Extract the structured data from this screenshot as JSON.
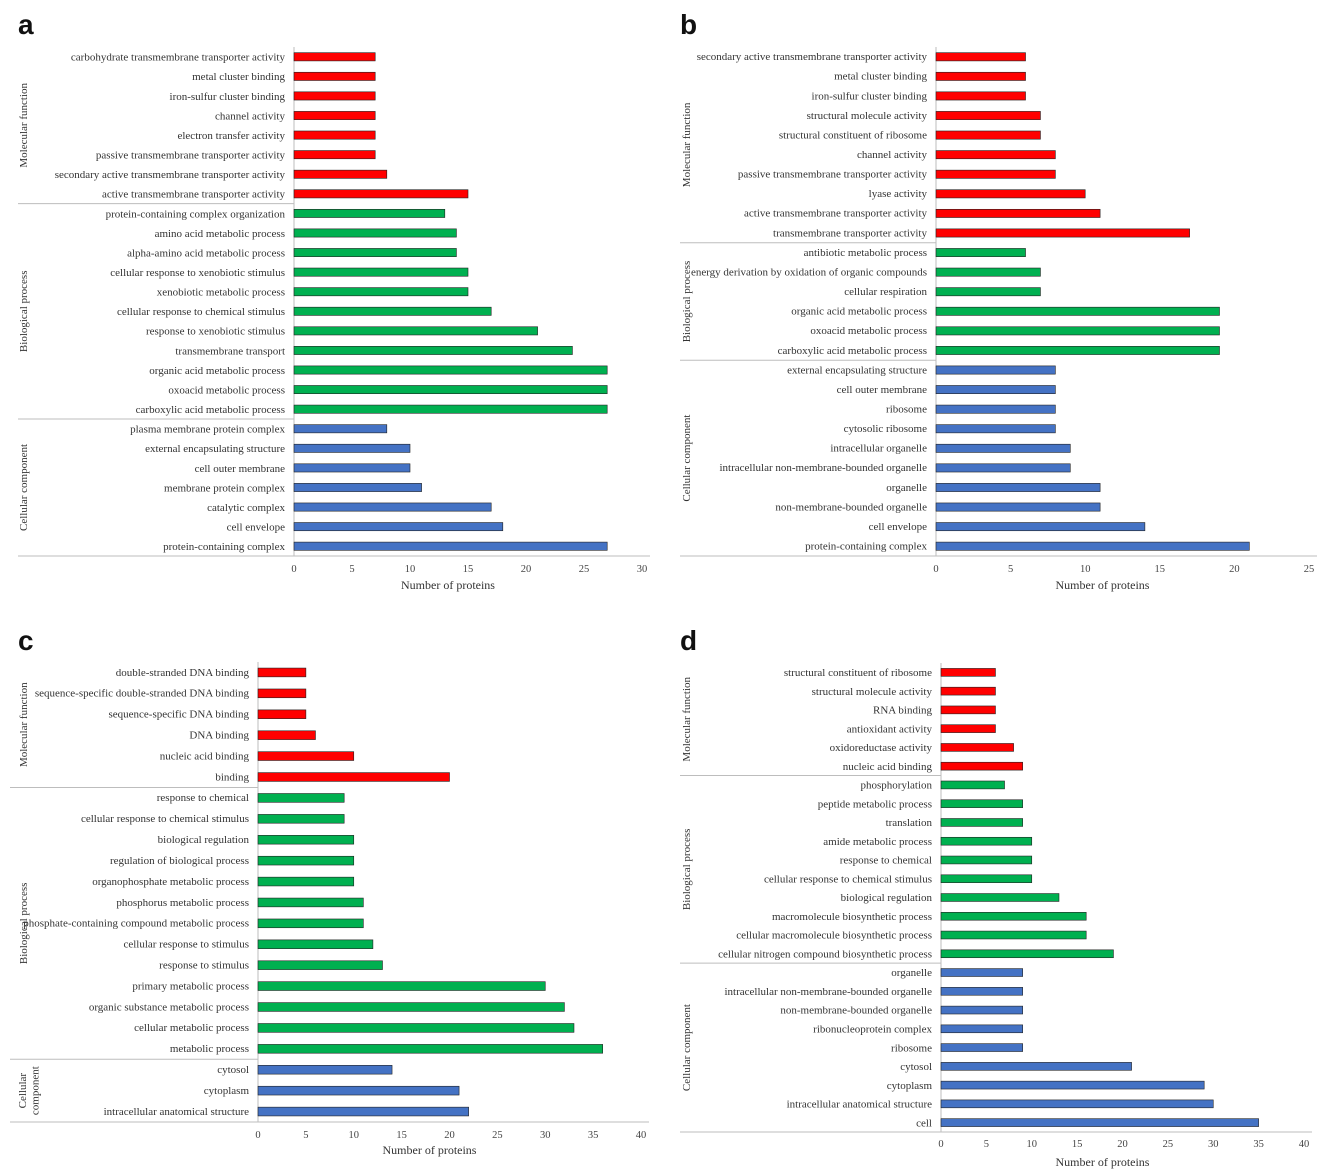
{
  "chart_data": [
    {
      "panel": "a",
      "type": "bar",
      "orientation": "horizontal",
      "xlabel": "Number of proteins",
      "xlim": [
        0,
        30
      ],
      "xticks": [
        0,
        5,
        10,
        15,
        20,
        25,
        30
      ],
      "groups": [
        {
          "name": "Molecular function",
          "color": "#ff0000",
          "items": [
            {
              "label": "carbohydrate transmembrane transporter activity",
              "value": 7
            },
            {
              "label": "metal cluster binding",
              "value": 7
            },
            {
              "label": "iron-sulfur cluster binding",
              "value": 7
            },
            {
              "label": "channel activity",
              "value": 7
            },
            {
              "label": "electron transfer activity",
              "value": 7
            },
            {
              "label": "passive transmembrane transporter activity",
              "value": 7
            },
            {
              "label": "secondary active transmembrane transporter activity",
              "value": 8
            },
            {
              "label": "active transmembrane transporter activity",
              "value": 15
            }
          ]
        },
        {
          "name": "Biological process",
          "color": "#00b050",
          "items": [
            {
              "label": "protein-containing complex organization",
              "value": 13
            },
            {
              "label": "amino acid metabolic process",
              "value": 14
            },
            {
              "label": "alpha-amino acid metabolic process",
              "value": 14
            },
            {
              "label": "cellular response to xenobiotic stimulus",
              "value": 15
            },
            {
              "label": "xenobiotic metabolic process",
              "value": 15
            },
            {
              "label": "cellular response to chemical stimulus",
              "value": 17
            },
            {
              "label": "response to xenobiotic stimulus",
              "value": 21
            },
            {
              "label": "transmembrane transport",
              "value": 24
            },
            {
              "label": "organic acid metabolic process",
              "value": 27
            },
            {
              "label": "oxoacid metabolic process",
              "value": 27
            },
            {
              "label": "carboxylic acid metabolic process",
              "value": 27
            }
          ]
        },
        {
          "name": "Cellular component",
          "color": "#4472c4",
          "items": [
            {
              "label": "plasma membrane protein complex",
              "value": 8
            },
            {
              "label": "external encapsulating structure",
              "value": 10
            },
            {
              "label": "cell outer membrane",
              "value": 10
            },
            {
              "label": "membrane protein complex",
              "value": 11
            },
            {
              "label": "catalytic complex",
              "value": 17
            },
            {
              "label": "cell envelope",
              "value": 18
            },
            {
              "label": "protein-containing complex",
              "value": 27
            }
          ]
        }
      ]
    },
    {
      "panel": "b",
      "type": "bar",
      "orientation": "horizontal",
      "xlabel": "Number of proteins",
      "xlim": [
        0,
        25
      ],
      "xticks": [
        0,
        5,
        10,
        15,
        20,
        25
      ],
      "groups": [
        {
          "name": "Molecular function",
          "color": "#ff0000",
          "items": [
            {
              "label": "secondary active transmembrane transporter activity",
              "value": 6
            },
            {
              "label": "metal cluster binding",
              "value": 6
            },
            {
              "label": "iron-sulfur cluster binding",
              "value": 6
            },
            {
              "label": "structural molecule activity",
              "value": 7
            },
            {
              "label": "structural constituent of ribosome",
              "value": 7
            },
            {
              "label": "channel activity",
              "value": 8
            },
            {
              "label": "passive transmembrane transporter activity",
              "value": 8
            },
            {
              "label": "lyase activity",
              "value": 10
            },
            {
              "label": "active transmembrane transporter activity",
              "value": 11
            },
            {
              "label": "transmembrane transporter activity",
              "value": 17
            }
          ]
        },
        {
          "name": "Biological process",
          "color": "#00b050",
          "items": [
            {
              "label": "antibiotic metabolic process",
              "value": 6
            },
            {
              "label": "energy derivation by oxidation of organic compounds",
              "value": 7
            },
            {
              "label": "cellular respiration",
              "value": 7
            },
            {
              "label": "organic acid metabolic process",
              "value": 19
            },
            {
              "label": "oxoacid metabolic process",
              "value": 19
            },
            {
              "label": "carboxylic acid metabolic process",
              "value": 19
            }
          ]
        },
        {
          "name": "Cellular component",
          "color": "#4472c4",
          "items": [
            {
              "label": "external encapsulating structure",
              "value": 8
            },
            {
              "label": "cell outer membrane",
              "value": 8
            },
            {
              "label": "ribosome",
              "value": 8
            },
            {
              "label": "cytosolic ribosome",
              "value": 8
            },
            {
              "label": "intracellular organelle",
              "value": 9
            },
            {
              "label": "intracellular non-membrane-bounded organelle",
              "value": 9
            },
            {
              "label": "organelle",
              "value": 11
            },
            {
              "label": "non-membrane-bounded organelle",
              "value": 11
            },
            {
              "label": "cell envelope",
              "value": 14
            },
            {
              "label": "protein-containing complex",
              "value": 21
            }
          ]
        }
      ]
    },
    {
      "panel": "c",
      "type": "bar",
      "orientation": "horizontal",
      "xlabel": "Number of proteins",
      "xlim": [
        0,
        40
      ],
      "xticks": [
        0,
        5,
        10,
        15,
        20,
        25,
        30,
        35,
        40
      ],
      "groups": [
        {
          "name": "Molecular function",
          "color": "#ff0000",
          "items": [
            {
              "label": "double-stranded DNA binding",
              "value": 5
            },
            {
              "label": "sequence-specific double-stranded DNA binding",
              "value": 5
            },
            {
              "label": "sequence-specific DNA binding",
              "value": 5
            },
            {
              "label": "DNA binding",
              "value": 6
            },
            {
              "label": "nucleic acid binding",
              "value": 10
            },
            {
              "label": "binding",
              "value": 20
            }
          ]
        },
        {
          "name": "Biological process",
          "color": "#00b050",
          "items": [
            {
              "label": "response to chemical",
              "value": 9
            },
            {
              "label": "cellular response to chemical stimulus",
              "value": 9
            },
            {
              "label": "biological regulation",
              "value": 10
            },
            {
              "label": "regulation of biological process",
              "value": 10
            },
            {
              "label": "organophosphate metabolic process",
              "value": 10
            },
            {
              "label": "phosphorus metabolic process",
              "value": 11
            },
            {
              "label": "phosphate-containing compound metabolic process",
              "value": 11
            },
            {
              "label": "cellular response to stimulus",
              "value": 12
            },
            {
              "label": "response to stimulus",
              "value": 13
            },
            {
              "label": "primary metabolic process",
              "value": 30
            },
            {
              "label": "organic substance metabolic process",
              "value": 32
            },
            {
              "label": "cellular metabolic process",
              "value": 33
            },
            {
              "label": "metabolic process",
              "value": 36
            }
          ]
        },
        {
          "name": "Cellular component",
          "color": "#4472c4",
          "items": [
            {
              "label": "cytosol",
              "value": 14
            },
            {
              "label": "cytoplasm",
              "value": 21
            },
            {
              "label": "intracellular anatomical structure",
              "value": 22
            }
          ]
        }
      ]
    },
    {
      "panel": "d",
      "type": "bar",
      "orientation": "horizontal",
      "xlabel": "Number of proteins",
      "xlim": [
        0,
        40
      ],
      "xticks": [
        0,
        5,
        10,
        15,
        20,
        25,
        30,
        35,
        40
      ],
      "groups": [
        {
          "name": "Molecular function",
          "color": "#ff0000",
          "items": [
            {
              "label": "structural constituent of ribosome",
              "value": 6
            },
            {
              "label": "structural molecule activity",
              "value": 6
            },
            {
              "label": "RNA binding",
              "value": 6
            },
            {
              "label": "antioxidant activity",
              "value": 6
            },
            {
              "label": "oxidoreductase activity",
              "value": 8
            },
            {
              "label": "nucleic acid binding",
              "value": 9
            }
          ]
        },
        {
          "name": "Biological process",
          "color": "#00b050",
          "items": [
            {
              "label": "phosphorylation",
              "value": 7
            },
            {
              "label": "peptide metabolic process",
              "value": 9
            },
            {
              "label": "translation",
              "value": 9
            },
            {
              "label": "amide metabolic process",
              "value": 10
            },
            {
              "label": "response to chemical",
              "value": 10
            },
            {
              "label": "cellular response to chemical stimulus",
              "value": 10
            },
            {
              "label": "biological regulation",
              "value": 13
            },
            {
              "label": "macromolecule biosynthetic process",
              "value": 16
            },
            {
              "label": "cellular macromolecule biosynthetic process",
              "value": 16
            },
            {
              "label": "cellular nitrogen compound biosynthetic process",
              "value": 19
            }
          ]
        },
        {
          "name": "Cellular component",
          "color": "#4472c4",
          "items": [
            {
              "label": "organelle",
              "value": 9
            },
            {
              "label": "intracellular non-membrane-bounded organelle",
              "value": 9
            },
            {
              "label": "non-membrane-bounded organelle",
              "value": 9
            },
            {
              "label": "ribonucleoprotein complex",
              "value": 9
            },
            {
              "label": "ribosome",
              "value": 9
            },
            {
              "label": "cytosol",
              "value": 21
            },
            {
              "label": "cytoplasm",
              "value": 29
            },
            {
              "label": "intracellular anatomical structure",
              "value": 30
            },
            {
              "label": "cell",
              "value": 35
            }
          ]
        }
      ]
    }
  ]
}
